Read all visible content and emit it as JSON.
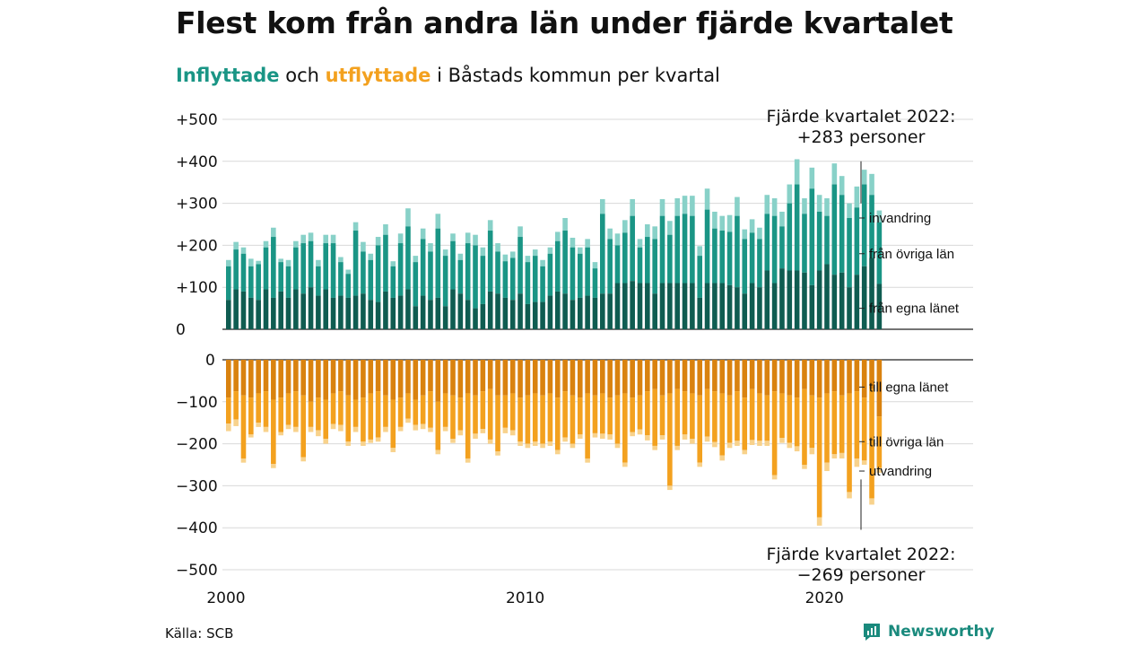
{
  "title": "Flest kom från andra län under fjärde kvartalet",
  "subtitle": {
    "inflows": "Inflyttade",
    "middle": " och ",
    "outflows": "utflyttade",
    "rest": " i Båstads kommun per kvartal"
  },
  "source": "Källa: SCB",
  "logo_text": "Newsworthy",
  "colors": {
    "in_own": "#0f5c51",
    "in_other": "#1a9585",
    "in_immigration": "#88d1c8",
    "out_own": "#d9820f",
    "out_other": "#f3a11f",
    "out_emigration": "#f8d28c",
    "grid": "#d9d9d9",
    "logo": "#1a8a7d"
  },
  "annotations": {
    "top_line1": "Fjärde kvartalet 2022:",
    "top_line2": "+283 personer",
    "bottom_line1": "Fjärde kvartalet 2022:",
    "bottom_line2": "−269 personer"
  },
  "chart_data": {
    "type": "bar",
    "stacked": true,
    "x_start": 2000,
    "period": "quarter",
    "x_ticks": [
      "2000",
      "2010",
      "2020"
    ],
    "y_ticks_top": [
      "+500",
      "+400",
      "+300",
      "+200",
      "+100",
      "0"
    ],
    "y_ticks_bottom": [
      "0",
      "−100",
      "−200",
      "−300",
      "−400",
      "−500"
    ],
    "ylim_top": [
      0,
      500
    ],
    "ylim_bottom": [
      -500,
      0
    ],
    "grid": true,
    "series_in_labels": [
      "från egna länet",
      "från övriga län",
      "invandring"
    ],
    "series_out_labels": [
      "till egna länet",
      "till övriga län",
      "utvandring"
    ],
    "in_total": [
      165,
      208,
      195,
      168,
      163,
      210,
      242,
      168,
      165,
      210,
      225,
      230,
      165,
      225,
      225,
      172,
      142,
      255,
      208,
      180,
      220,
      250,
      162,
      228,
      288,
      175,
      240,
      205,
      275,
      190,
      228,
      180,
      230,
      225,
      195,
      260,
      205,
      178,
      185,
      245,
      175,
      190,
      165,
      195,
      232,
      265,
      218,
      195,
      215,
      160,
      310,
      240,
      228,
      260,
      310,
      215,
      250,
      245,
      310,
      258,
      312,
      318,
      318,
      198,
      335,
      280,
      270,
      272,
      315,
      238,
      262,
      242,
      320,
      312,
      280,
      345,
      405,
      312,
      385,
      320,
      312,
      395,
      365,
      300,
      340,
      380,
      370,
      283
    ],
    "in_own": [
      70,
      95,
      90,
      75,
      70,
      95,
      75,
      90,
      75,
      95,
      85,
      100,
      80,
      95,
      75,
      80,
      75,
      80,
      85,
      70,
      65,
      90,
      75,
      80,
      95,
      55,
      80,
      70,
      75,
      55,
      95,
      85,
      70,
      50,
      60,
      90,
      85,
      75,
      70,
      85,
      60,
      65,
      65,
      80,
      90,
      85,
      70,
      75,
      80,
      75,
      85,
      85,
      110,
      110,
      115,
      110,
      110,
      85,
      110,
      110,
      110,
      110,
      110,
      75,
      110,
      110,
      110,
      105,
      100,
      85,
      110,
      100,
      140,
      110,
      145,
      140,
      140,
      135,
      105,
      140,
      155,
      130,
      135,
      100,
      130,
      150,
      170,
      108
    ],
    "in_other": [
      150,
      190,
      180,
      150,
      155,
      195,
      220,
      160,
      150,
      195,
      205,
      210,
      150,
      205,
      205,
      160,
      132,
      235,
      185,
      165,
      200,
      225,
      150,
      205,
      245,
      160,
      215,
      185,
      240,
      175,
      210,
      165,
      205,
      200,
      175,
      235,
      185,
      162,
      170,
      220,
      160,
      175,
      150,
      180,
      210,
      235,
      195,
      180,
      195,
      145,
      275,
      215,
      200,
      230,
      270,
      195,
      220,
      215,
      270,
      225,
      270,
      275,
      270,
      175,
      285,
      240,
      235,
      232,
      270,
      215,
      230,
      215,
      275,
      270,
      245,
      300,
      345,
      275,
      335,
      280,
      270,
      345,
      320,
      265,
      290,
      345,
      320,
      255
    ],
    "out_total": [
      -170,
      -158,
      -245,
      -185,
      -160,
      -172,
      -258,
      -180,
      -165,
      -172,
      -242,
      -172,
      -182,
      -200,
      -165,
      -170,
      -205,
      -172,
      -205,
      -198,
      -195,
      -172,
      -220,
      -170,
      -150,
      -168,
      -165,
      -172,
      -225,
      -170,
      -198,
      -180,
      -245,
      -188,
      -175,
      -200,
      -228,
      -175,
      -180,
      -205,
      -210,
      -205,
      -210,
      -205,
      -225,
      -195,
      -210,
      -188,
      -245,
      -185,
      -188,
      -190,
      -210,
      -255,
      -182,
      -178,
      -192,
      -215,
      -190,
      -310,
      -215,
      -190,
      -200,
      -255,
      -195,
      -208,
      -240,
      -210,
      -205,
      -225,
      -203,
      -205,
      -205,
      -285,
      -198,
      -210,
      -218,
      -260,
      -225,
      -395,
      -265,
      -235,
      -235,
      -330,
      -255,
      -250,
      -345,
      -269
    ],
    "out_own": [
      -90,
      -75,
      -85,
      -90,
      -80,
      -75,
      -95,
      -90,
      -80,
      -75,
      -85,
      -100,
      -90,
      -95,
      -80,
      -75,
      -85,
      -95,
      -90,
      -80,
      -75,
      -85,
      -95,
      -90,
      -80,
      -95,
      -85,
      -75,
      -100,
      -80,
      -85,
      -90,
      -80,
      -85,
      -75,
      -70,
      -85,
      -85,
      -80,
      -90,
      -85,
      -80,
      -85,
      -80,
      -90,
      -75,
      -85,
      -90,
      -80,
      -85,
      -80,
      -90,
      -85,
      -80,
      -90,
      -85,
      -75,
      -70,
      -85,
      -80,
      -70,
      -75,
      -80,
      -85,
      -70,
      -75,
      -80,
      -85,
      -75,
      -90,
      -70,
      -80,
      -85,
      -75,
      -80,
      -85,
      -90,
      -70,
      -85,
      -90,
      -80,
      -75,
      -85,
      -80,
      -75,
      -90,
      -70,
      -135
    ],
    "out_other": [
      -152,
      -142,
      -235,
      -178,
      -150,
      -160,
      -248,
      -172,
      -155,
      -160,
      -232,
      -160,
      -168,
      -188,
      -153,
      -155,
      -195,
      -160,
      -195,
      -190,
      -185,
      -160,
      -210,
      -160,
      -140,
      -155,
      -153,
      -162,
      -215,
      -160,
      -188,
      -168,
      -235,
      -176,
      -165,
      -190,
      -218,
      -162,
      -168,
      -195,
      -200,
      -195,
      -200,
      -195,
      -215,
      -185,
      -200,
      -178,
      -235,
      -175,
      -176,
      -178,
      -200,
      -245,
      -172,
      -166,
      -180,
      -205,
      -180,
      -300,
      -205,
      -178,
      -188,
      -245,
      -183,
      -196,
      -228,
      -198,
      -193,
      -215,
      -191,
      -193,
      -193,
      -275,
      -186,
      -198,
      -206,
      -250,
      -210,
      -375,
      -245,
      -225,
      -222,
      -315,
      -235,
      -240,
      -330,
      -258
    ]
  }
}
